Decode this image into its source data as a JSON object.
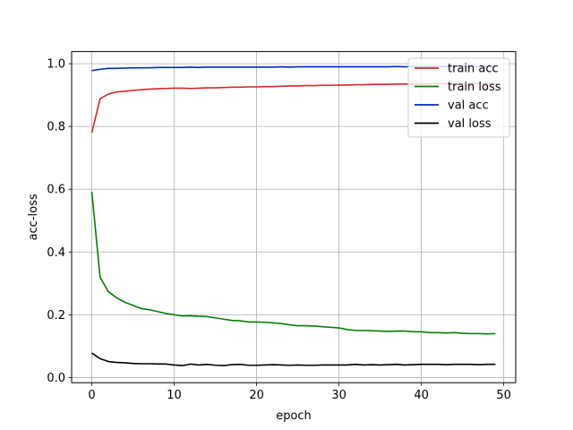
{
  "chart_data": {
    "type": "line",
    "title": "",
    "xlabel": "epoch",
    "ylabel": "acc-loss",
    "xlim": [
      -2.45,
      51.45
    ],
    "ylim": [
      -0.0165,
      1.0385
    ],
    "xticks": [
      0,
      10,
      20,
      30,
      40,
      50
    ],
    "yticks": [
      0.0,
      0.2,
      0.4,
      0.6,
      0.8,
      1.0
    ],
    "xtick_labels": [
      "0",
      "10",
      "20",
      "30",
      "40",
      "50"
    ],
    "ytick_labels": [
      "0.0",
      "0.2",
      "0.4",
      "0.6",
      "0.8",
      "1.0"
    ],
    "grid": true,
    "legend_position": "top-right",
    "x": [
      0,
      1,
      2,
      3,
      4,
      5,
      6,
      7,
      8,
      9,
      10,
      11,
      12,
      13,
      14,
      15,
      16,
      17,
      18,
      19,
      20,
      21,
      22,
      23,
      24,
      25,
      26,
      27,
      28,
      29,
      30,
      31,
      32,
      33,
      34,
      35,
      36,
      37,
      38,
      39,
      40,
      41,
      42,
      43,
      44,
      45,
      46,
      47,
      48,
      49
    ],
    "series": [
      {
        "name": "train acc",
        "color": "#d62728",
        "values": [
          0.78,
          0.888,
          0.903,
          0.91,
          0.912,
          0.915,
          0.917,
          0.919,
          0.92,
          0.921,
          0.922,
          0.922,
          0.921,
          0.922,
          0.923,
          0.923,
          0.924,
          0.925,
          0.925,
          0.926,
          0.926,
          0.927,
          0.927,
          0.928,
          0.929,
          0.929,
          0.93,
          0.93,
          0.931,
          0.931,
          0.932,
          0.932,
          0.933,
          0.933,
          0.934,
          0.934,
          0.934,
          0.935,
          0.935,
          0.935,
          0.935,
          0.936,
          0.936,
          0.936,
          0.936,
          0.937,
          0.937,
          0.937,
          0.937,
          0.937
        ]
      },
      {
        "name": "train loss",
        "color": "#008000",
        "values": [
          0.592,
          0.32,
          0.274,
          0.254,
          0.24,
          0.23,
          0.22,
          0.216,
          0.21,
          0.204,
          0.2,
          0.196,
          0.197,
          0.195,
          0.194,
          0.19,
          0.186,
          0.182,
          0.181,
          0.177,
          0.177,
          0.176,
          0.174,
          0.172,
          0.168,
          0.165,
          0.165,
          0.164,
          0.162,
          0.16,
          0.158,
          0.153,
          0.15,
          0.15,
          0.149,
          0.148,
          0.147,
          0.148,
          0.148,
          0.146,
          0.146,
          0.143,
          0.143,
          0.142,
          0.143,
          0.141,
          0.14,
          0.14,
          0.139,
          0.14
        ]
      },
      {
        "name": "val acc",
        "color": "#0028c8",
        "values": [
          0.978,
          0.982,
          0.985,
          0.985,
          0.986,
          0.987,
          0.987,
          0.987,
          0.988,
          0.988,
          0.988,
          0.988,
          0.989,
          0.988,
          0.989,
          0.989,
          0.989,
          0.989,
          0.989,
          0.989,
          0.989,
          0.989,
          0.989,
          0.99,
          0.989,
          0.99,
          0.99,
          0.99,
          0.99,
          0.99,
          0.99,
          0.99,
          0.99,
          0.99,
          0.99,
          0.99,
          0.99,
          0.991,
          0.99,
          0.991,
          0.991,
          0.991,
          0.991,
          0.991,
          0.991,
          0.991,
          0.991,
          0.991,
          0.991,
          0.991
        ]
      },
      {
        "name": "val loss",
        "color": "#000000",
        "values": [
          0.078,
          0.06,
          0.051,
          0.048,
          0.047,
          0.045,
          0.044,
          0.044,
          0.043,
          0.043,
          0.04,
          0.038,
          0.043,
          0.04,
          0.042,
          0.039,
          0.038,
          0.041,
          0.042,
          0.039,
          0.039,
          0.04,
          0.041,
          0.04,
          0.039,
          0.04,
          0.039,
          0.039,
          0.04,
          0.04,
          0.04,
          0.04,
          0.042,
          0.04,
          0.041,
          0.04,
          0.041,
          0.042,
          0.04,
          0.041,
          0.042,
          0.042,
          0.042,
          0.041,
          0.042,
          0.042,
          0.042,
          0.041,
          0.042,
          0.042
        ]
      }
    ]
  }
}
